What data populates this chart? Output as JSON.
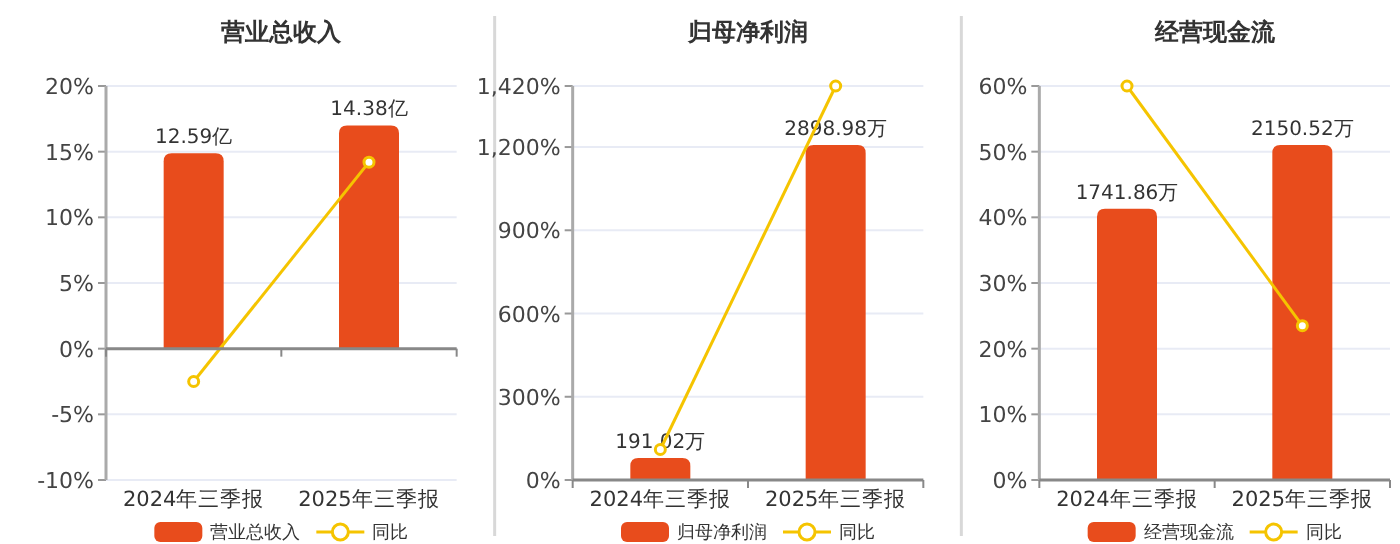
{
  "chart_data": [
    {
      "type": "bar",
      "title": "营业总收入",
      "categories": [
        "2024年三季报",
        "2025年三季报"
      ],
      "series": [
        {
          "name": "营业总收入",
          "axis": "y2",
          "color": "#e84c1c",
          "values": [
            12.59,
            14.38
          ],
          "value_labels": [
            "12.59亿",
            "14.38亿"
          ]
        },
        {
          "name": "同比",
          "type": "line",
          "color": "#f5c400",
          "marker": "circle",
          "values": [
            -2.5,
            14.2
          ]
        }
      ],
      "ylim": [
        -10,
        20
      ],
      "yticks": [
        {
          "value": -10,
          "label": "-10%"
        },
        {
          "value": -5,
          "label": "-5%"
        },
        {
          "value": 0,
          "label": "0%"
        },
        {
          "value": 5,
          "label": "5%"
        },
        {
          "value": 10,
          "label": "10%"
        },
        {
          "value": 15,
          "label": "15%"
        },
        {
          "value": 20,
          "label": "20%"
        }
      ],
      "grid": "y",
      "legend": "bottom"
    },
    {
      "type": "bar",
      "title": "归母净利润",
      "categories": [
        "2024年三季报",
        "2025年三季报"
      ],
      "series": [
        {
          "name": "归母净利润",
          "axis": "y2",
          "color": "#e84c1c",
          "values": [
            191.02,
            2898.98
          ],
          "value_labels": [
            "191.02万",
            "2898.98万"
          ]
        },
        {
          "name": "同比",
          "type": "line",
          "color": "#f5c400",
          "marker": "circle",
          "values": [
            110,
            1420
          ]
        }
      ],
      "ylim": [
        0,
        1420
      ],
      "yticks": [
        {
          "value": 0,
          "label": "0%"
        },
        {
          "value": 300,
          "label": "300%"
        },
        {
          "value": 600,
          "label": "600%"
        },
        {
          "value": 900,
          "label": "900%"
        },
        {
          "value": 1200,
          "label": "1,200%"
        },
        {
          "value": 1420,
          "label": "1,420%"
        }
      ],
      "grid": "y",
      "legend": "bottom"
    },
    {
      "type": "bar",
      "title": "经营现金流",
      "categories": [
        "2024年三季报",
        "2025年三季报"
      ],
      "series": [
        {
          "name": "经营现金流",
          "axis": "y2",
          "color": "#e84c1c",
          "values": [
            1741.86,
            2150.52
          ],
          "value_labels": [
            "1741.86万",
            "2150.52万"
          ]
        },
        {
          "name": "同比",
          "type": "line",
          "color": "#f5c400",
          "marker": "circle",
          "values": [
            60,
            23.5
          ]
        }
      ],
      "ylim": [
        0,
        60
      ],
      "yticks": [
        {
          "value": 0,
          "label": "0%"
        },
        {
          "value": 10,
          "label": "10%"
        },
        {
          "value": 20,
          "label": "20%"
        },
        {
          "value": 30,
          "label": "30%"
        },
        {
          "value": 40,
          "label": "40%"
        },
        {
          "value": 50,
          "label": "50%"
        },
        {
          "value": 60,
          "label": "60%"
        }
      ],
      "grid": "y",
      "legend": "bottom"
    }
  ]
}
